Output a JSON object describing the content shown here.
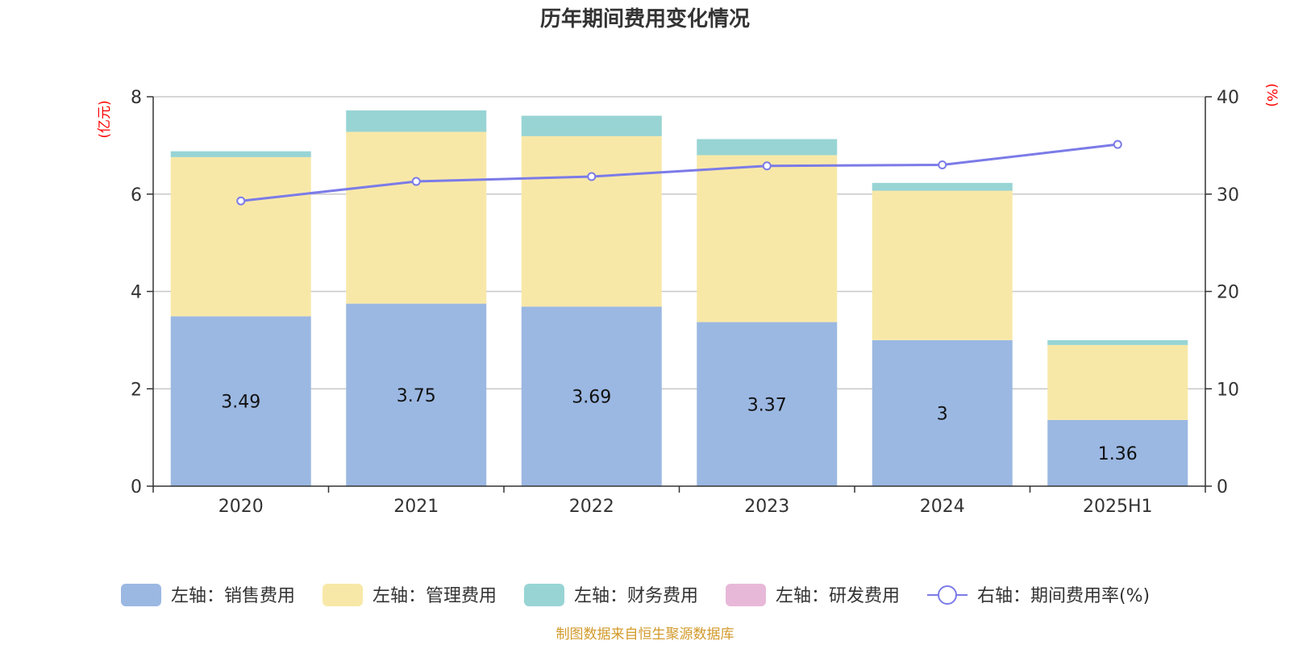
{
  "chart_data": {
    "type": "bar",
    "title": "历年期间费用变化情况",
    "categories": [
      "2020",
      "2021",
      "2022",
      "2023",
      "2024",
      "2025H1"
    ],
    "left_axis": {
      "unit_label": "(亿元)",
      "ylim": [
        0,
        8
      ],
      "ticks": [
        "0",
        "2",
        "4",
        "6",
        "8"
      ]
    },
    "right_axis": {
      "unit_label": "(%)",
      "ylim": [
        0,
        40
      ],
      "ticks": [
        "0",
        "10",
        "20",
        "30",
        "40"
      ]
    },
    "grid": true,
    "legend_position": "bottom",
    "series": [
      {
        "name": "左轴：销售费用",
        "kind": "bar",
        "stack": "left",
        "axis": "left",
        "color": "#9bb8e2",
        "values": [
          3.49,
          3.75,
          3.69,
          3.37,
          3.0,
          1.36
        ],
        "data_labels": [
          "3.49",
          "3.75",
          "3.69",
          "3.37",
          "3",
          "1.36"
        ]
      },
      {
        "name": "左轴：管理费用",
        "kind": "bar",
        "stack": "left",
        "axis": "left",
        "color": "#f8e8a8",
        "values": [
          3.27,
          3.53,
          3.5,
          3.43,
          3.07,
          1.54
        ]
      },
      {
        "name": "左轴：财务费用",
        "kind": "bar",
        "stack": "left",
        "axis": "left",
        "color": "#98d4d4",
        "values": [
          0.12,
          0.44,
          0.42,
          0.33,
          0.16,
          0.1
        ]
      },
      {
        "name": "左轴：研发费用",
        "kind": "bar",
        "stack": "left",
        "axis": "left",
        "color": "#e8b8d8",
        "values": [
          0,
          0,
          0,
          0,
          0,
          0
        ]
      },
      {
        "name": "右轴：期间费用率(%)",
        "kind": "line",
        "axis": "right",
        "color": "#7b7be8",
        "values": [
          29.3,
          31.3,
          31.8,
          32.9,
          33.0,
          35.1
        ]
      }
    ]
  },
  "footer": {
    "source": "制图数据来自恒生聚源数据库"
  }
}
